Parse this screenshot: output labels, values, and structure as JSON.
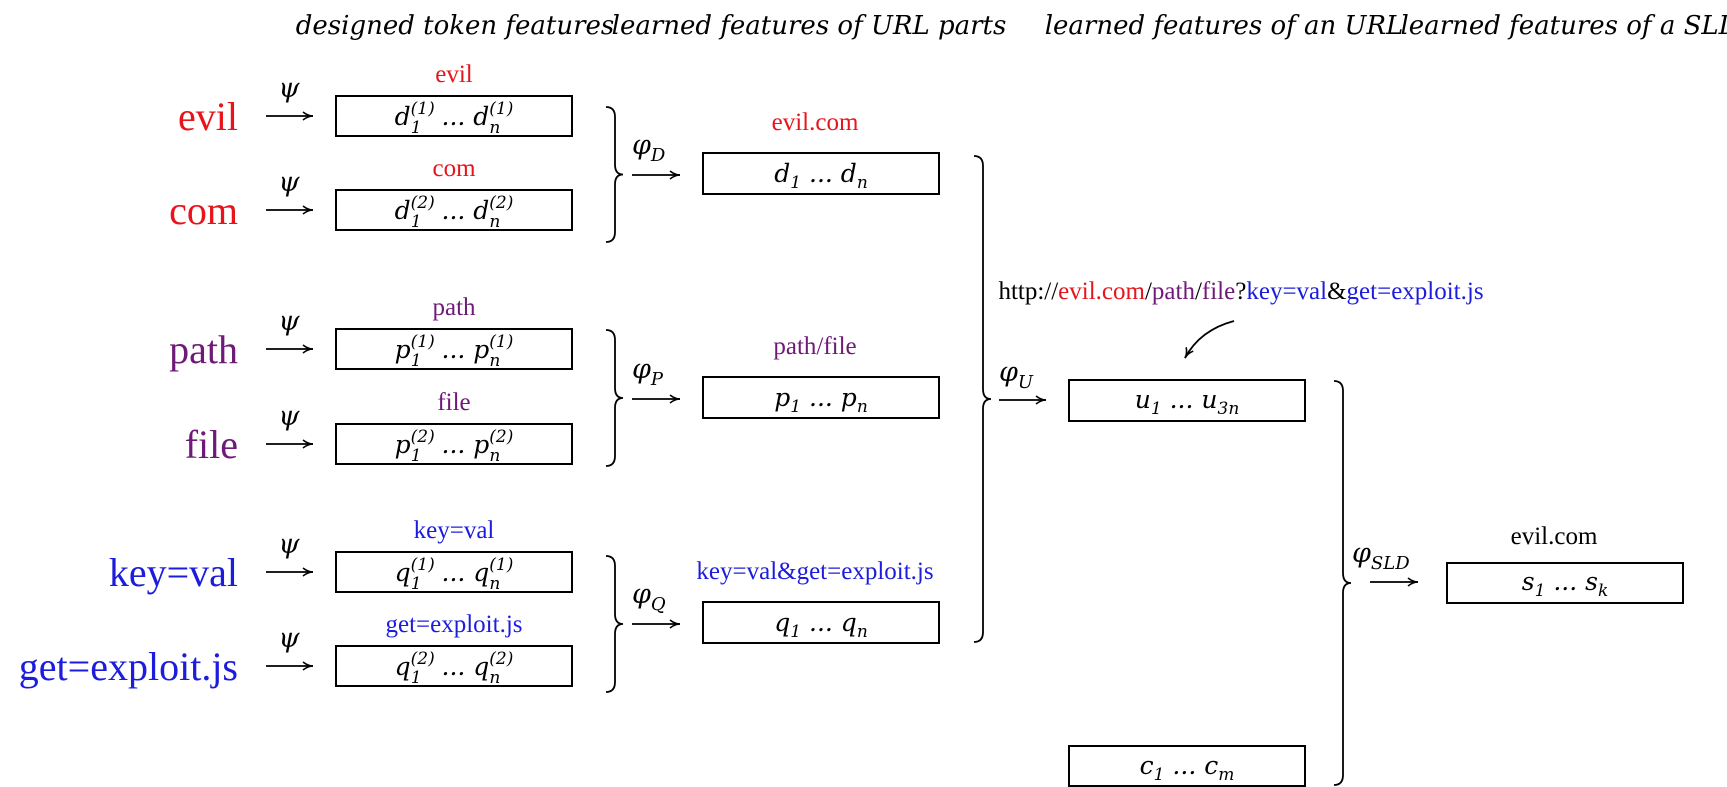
{
  "colors": {
    "domain": "#e8141c",
    "path": "#6e1a78",
    "query": "#1c1cdc",
    "text": "#000000"
  },
  "headers": [
    "designed token features",
    "learned features of URL parts",
    "learned features of an URL",
    "learned features of a SLD"
  ],
  "tokens": [
    {
      "label": "evil",
      "box_label": "evil",
      "sym": "d",
      "idx": "(1)",
      "group": "domain"
    },
    {
      "label": "com",
      "box_label": "com",
      "sym": "d",
      "idx": "(2)",
      "group": "domain"
    },
    {
      "label": "path",
      "box_label": "path",
      "sym": "p",
      "idx": "(1)",
      "group": "path"
    },
    {
      "label": "file",
      "box_label": "file",
      "sym": "p",
      "idx": "(2)",
      "group": "path"
    },
    {
      "label": "key=val",
      "box_label": "key=val",
      "sym": "q",
      "idx": "(1)",
      "group": "query"
    },
    {
      "label": "get=exploit.js",
      "box_label": "get=exploit.js",
      "sym": "q",
      "idx": "(2)",
      "group": "query"
    }
  ],
  "psi": "ψ",
  "subscripts": {
    "one": "1",
    "n": "n",
    "three_n": "3n",
    "m": "m",
    "k": "k"
  },
  "dots": "...",
  "parts": [
    {
      "label": "evil.com",
      "sym": "d",
      "phi": "φ",
      "phi_sub": "D",
      "group": "domain"
    },
    {
      "label": "path/file",
      "sym": "p",
      "phi": "φ",
      "phi_sub": "P",
      "group": "path"
    },
    {
      "label": "key=val&get=exploit.js",
      "sym": "q",
      "phi": "φ",
      "phi_sub": "Q",
      "group": "query"
    }
  ],
  "url": {
    "segments": [
      {
        "text": "http://",
        "group": "text"
      },
      {
        "text": "evil.com",
        "group": "domain"
      },
      {
        "text": "/",
        "group": "text"
      },
      {
        "text": "path",
        "group": "path"
      },
      {
        "text": "/",
        "group": "text"
      },
      {
        "text": "file",
        "group": "path"
      },
      {
        "text": "?",
        "group": "text"
      },
      {
        "text": "key=val",
        "group": "query"
      },
      {
        "text": "&",
        "group": "text"
      },
      {
        "text": "get=exploit.js",
        "group": "query"
      }
    ],
    "phi": "φ",
    "phi_sub": "U",
    "sym": "u",
    "c_sym": "c"
  },
  "sld": {
    "label": "evil.com",
    "sym": "s",
    "phi": "φ",
    "phi_sub": "SLD"
  }
}
